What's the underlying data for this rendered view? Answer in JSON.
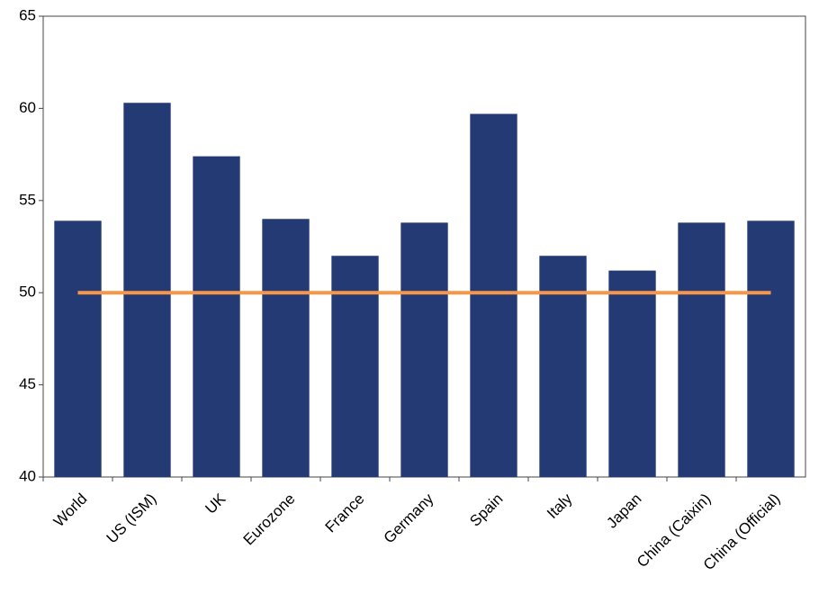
{
  "chart_data": {
    "type": "bar",
    "categories": [
      "World",
      "US (ISM)",
      "UK",
      "Eurozone",
      "France",
      "Germany",
      "Spain",
      "Italy",
      "Japan",
      "China (Caixin)",
      "China (Official)"
    ],
    "series": [
      {
        "type": "bar",
        "color": "#233a75",
        "values": [
          53.9,
          60.3,
          57.4,
          54.0,
          52.0,
          53.8,
          59.7,
          52.0,
          51.2,
          53.8,
          53.9
        ]
      },
      {
        "type": "line",
        "color": "#f79646",
        "values": [
          50,
          50,
          50,
          50,
          50,
          50,
          50,
          50,
          50,
          50,
          50
        ]
      }
    ],
    "ylim": [
      40,
      65
    ],
    "yticks": [
      40,
      45,
      50,
      55,
      60,
      65
    ],
    "grid": false
  }
}
